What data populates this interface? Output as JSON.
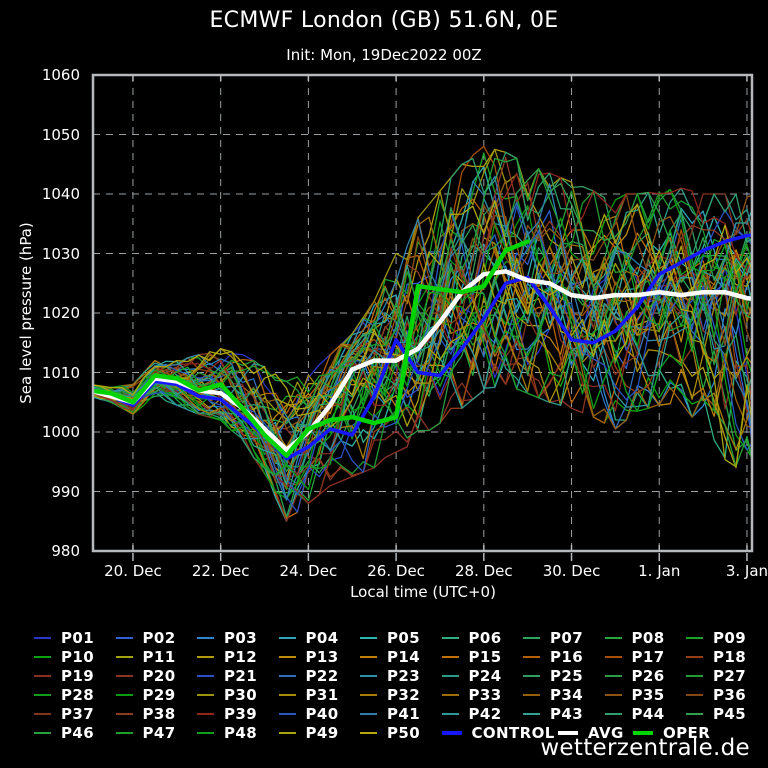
{
  "header": {
    "title": "ECMWF London (GB) 51.6N, 0E",
    "subtitle": "Init: Mon, 19Dec2022 00Z"
  },
  "watermark": "wetterzentrale.de",
  "colors": {
    "background": "#000000",
    "frame": "#b6babd",
    "grid": "#9aa0a4",
    "text": "#ffffff",
    "control": "#1717ff",
    "avg": "#ffffff",
    "oper": "#00d400"
  },
  "chart_data": {
    "type": "line",
    "title": "ECMWF London (GB) 51.6N, 0E",
    "subtitle": "Init: Mon, 19Dec2022 00Z",
    "xlabel": "Local time (UTC+0)",
    "ylabel": "Sea level pressure (hPa)",
    "ylim": [
      980,
      1060
    ],
    "yticks": [
      980,
      990,
      1000,
      1010,
      1020,
      1030,
      1040,
      1050,
      1060
    ],
    "grid": "dashed",
    "legend_position": "bottom",
    "x_start": "19 Dec 2022 00Z",
    "x_unit": "days",
    "xticks": [
      {
        "t": 1,
        "label": "20. Dec"
      },
      {
        "t": 3,
        "label": "22. Dec"
      },
      {
        "t": 5,
        "label": "24. Dec"
      },
      {
        "t": 7,
        "label": "26. Dec"
      },
      {
        "t": 9,
        "label": "28. Dec"
      },
      {
        "t": 11,
        "label": "30. Dec"
      },
      {
        "t": 13,
        "label": "1. Jan"
      },
      {
        "t": 15,
        "label": "3. Jan"
      }
    ],
    "t_step_days": 0.5,
    "series": [
      {
        "name": "AVG",
        "color": "#ffffff",
        "width": 4.5,
        "values": [
          1007,
          1006,
          1005,
          1009,
          1008.5,
          1007,
          1006.5,
          1004,
          1000.5,
          997,
          1000,
          1004.5,
          1010.5,
          1012,
          1012,
          1014,
          1018.5,
          1023.5,
          1026.5,
          1027,
          1025.5,
          1025,
          1023,
          1022.5,
          1023,
          1023,
          1023.5,
          1023,
          1023.5,
          1023.5,
          1022.5,
          1022
        ]
      },
      {
        "name": "CONTROL",
        "color": "#1717ff",
        "width": 3.5,
        "values": [
          1007,
          1006,
          1004.5,
          1008.5,
          1008,
          1006,
          1005.5,
          1002.5,
          999.5,
          995.5,
          997.5,
          1000.5,
          999.5,
          1006,
          1015.5,
          1010,
          1009.5,
          1014,
          1019,
          1025,
          1026,
          1021,
          1015.5,
          1015,
          1017,
          1021,
          1026.5,
          1028.5,
          1030.5,
          1032,
          1033,
          1033.5
        ]
      },
      {
        "name": "OPER",
        "color": "#00d400",
        "width": 4.5,
        "values": [
          1007,
          1006.5,
          1005,
          1009.5,
          1009,
          1007,
          1008,
          1004,
          999.5,
          996,
          1000.5,
          1002,
          1002.5,
          1001.5,
          1002.5,
          1024.5,
          1024,
          1023.5,
          1024.5,
          1030.5,
          1032
        ]
      }
    ],
    "ensemble": {
      "count": 50,
      "line_width": 1.3,
      "envelope_min": [
        1006,
        1005,
        1003,
        1006,
        1004.5,
        1003,
        1002,
        998.5,
        993,
        985,
        988,
        991,
        992.5,
        994,
        996,
        999,
        1001.5,
        1004,
        1007,
        1008,
        1006.5,
        1005,
        1004,
        1002.5,
        1000.5,
        1003.5,
        1004.5,
        1005,
        1000,
        991,
        997,
        986
      ],
      "envelope_max": [
        1008,
        1007.5,
        1008,
        1012,
        1012,
        1013,
        1014,
        1013,
        1011,
        1008.5,
        1010,
        1013,
        1016.5,
        1022,
        1030,
        1036,
        1040.5,
        1045,
        1048,
        1047,
        1045,
        1043.5,
        1042,
        1040.5,
        1040,
        1040,
        1040.5,
        1041,
        1040,
        1040,
        1040,
        1040
      ],
      "member_labels": [
        "P01",
        "P02",
        "P03",
        "P04",
        "P05",
        "P06",
        "P07",
        "P08",
        "P09",
        "P10",
        "P11",
        "P12",
        "P13",
        "P14",
        "P15",
        "P16",
        "P17",
        "P18",
        "P19",
        "P20",
        "P21",
        "P22",
        "P23",
        "P24",
        "P25",
        "P26",
        "P27",
        "P28",
        "P29",
        "P30",
        "P31",
        "P32",
        "P33",
        "P34",
        "P35",
        "P36",
        "P37",
        "P38",
        "P39",
        "P40",
        "P41",
        "P42",
        "P43",
        "P44",
        "P45",
        "P46",
        "P47",
        "P48",
        "P49",
        "P50"
      ],
      "member_colors": [
        "#2936c8",
        "#2f5fd2",
        "#2f85cd",
        "#2fa6c0",
        "#2fb4ab",
        "#2fae83",
        "#2aa75c",
        "#25a73c",
        "#18a326",
        "#0aa30f",
        "#a3a30f",
        "#b29b0c",
        "#bc8d0a",
        "#c07f09",
        "#bf7007",
        "#b66006",
        "#a65005",
        "#974016",
        "#8c2e20",
        "#8c3424",
        "#2b4fc4",
        "#2f70bd",
        "#2f8fa6",
        "#2f9c8a",
        "#2f9c62",
        "#2a9c45",
        "#219c2e",
        "#129c1b",
        "#0c9c10",
        "#9c940e",
        "#a68c0b",
        "#a87e09",
        "#9f6e08",
        "#96600c",
        "#8e5411",
        "#854815",
        "#83341e",
        "#8c3c25",
        "#91261c",
        "#2857c0",
        "#2f7fb0",
        "#2f979e",
        "#2fa295",
        "#2f9f6e",
        "#2f9f4d",
        "#279f3a",
        "#1b9f2a",
        "#109f1c",
        "#a9a40d",
        "#b3a80b"
      ]
    }
  },
  "legend": {
    "special": [
      {
        "label": "CONTROL",
        "color": "#1717ff"
      },
      {
        "label": "AVG",
        "color": "#ffffff"
      },
      {
        "label": "OPER",
        "color": "#00d400"
      }
    ]
  }
}
